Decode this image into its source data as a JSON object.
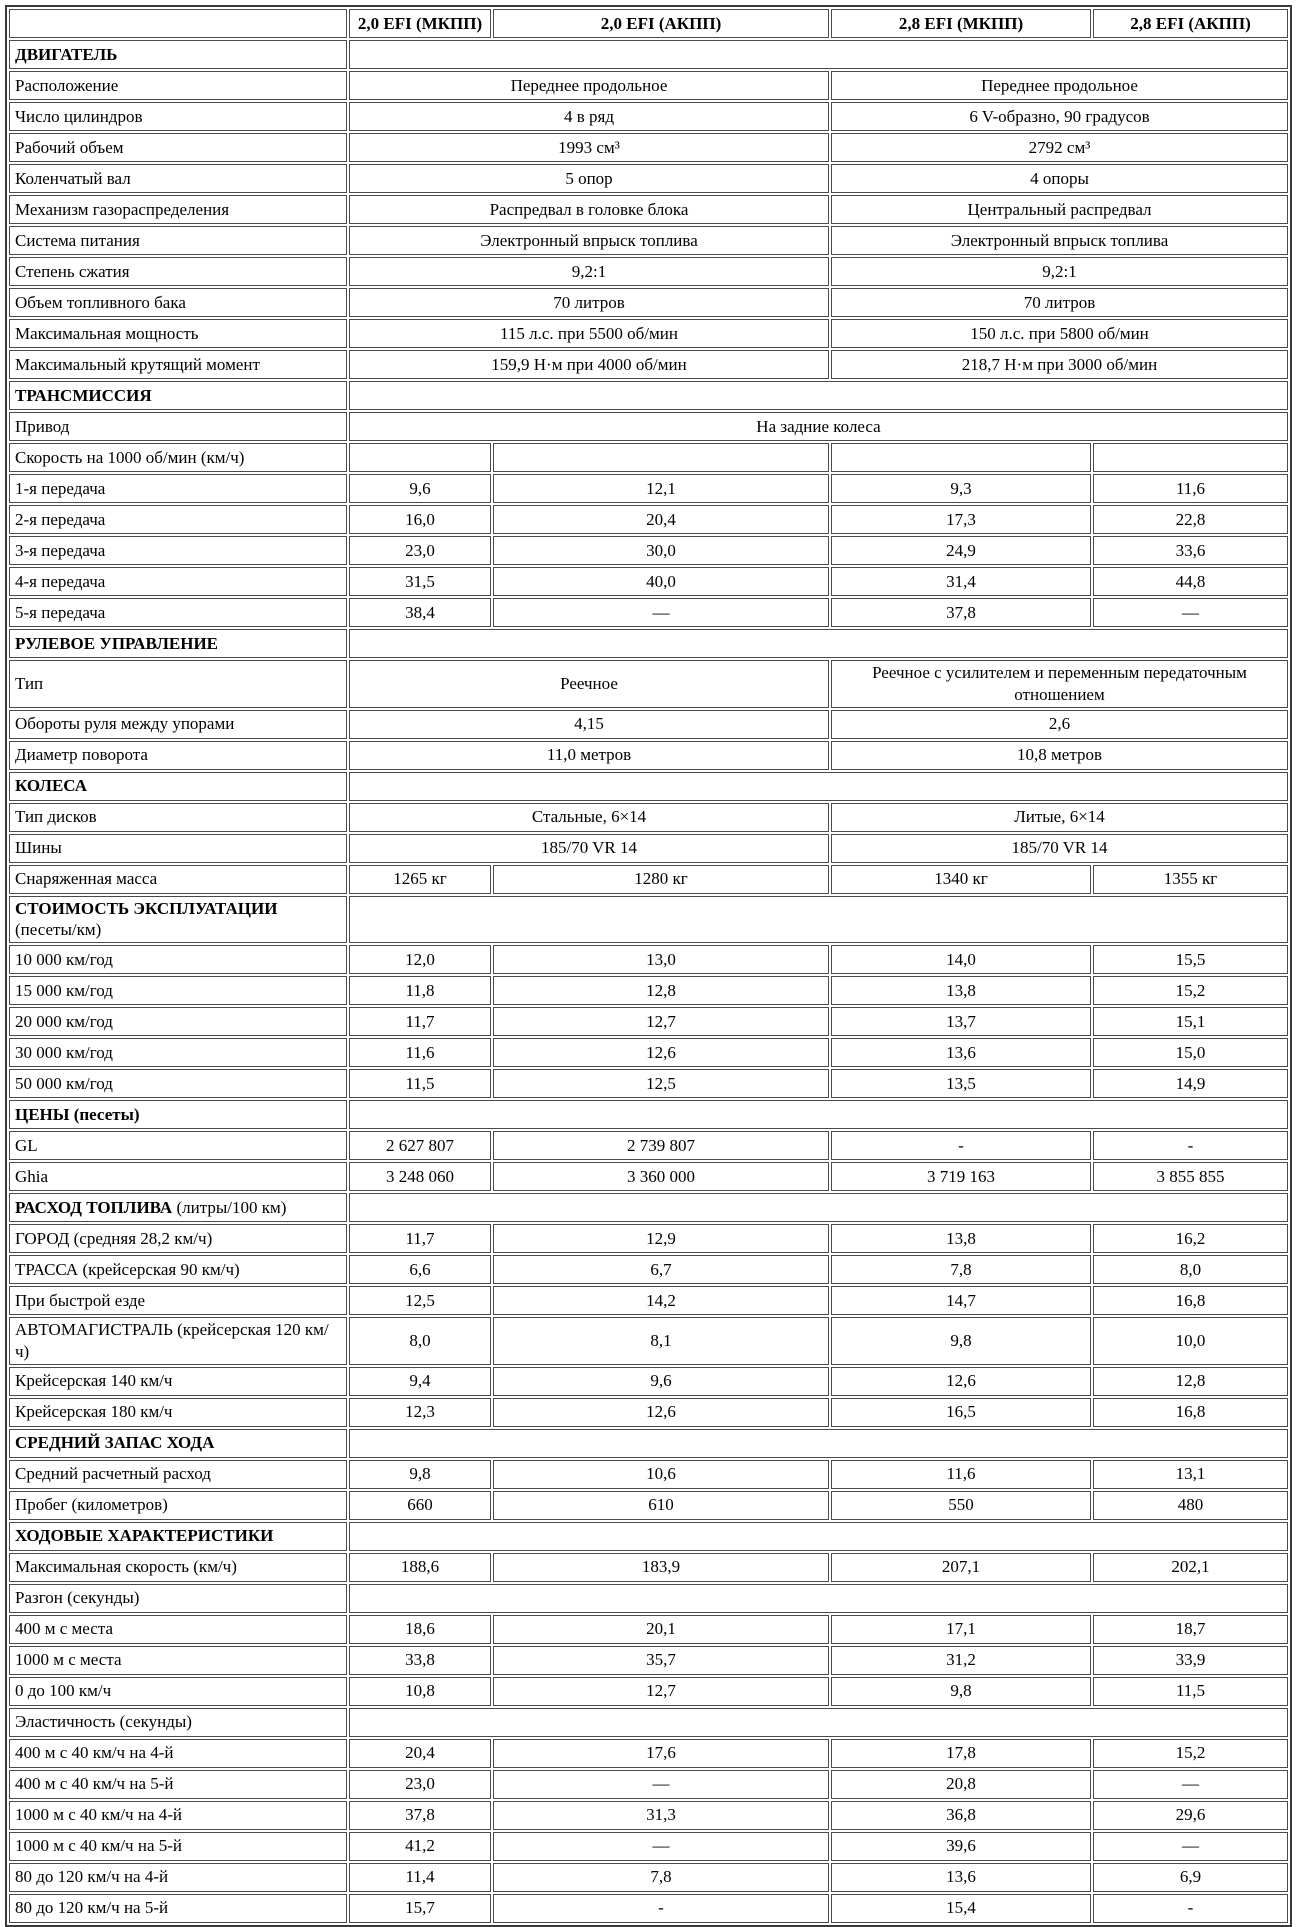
{
  "table": {
    "colors": {
      "background": "#ffffff",
      "text": "#000000",
      "cell_border": "#4a4a4a",
      "outer_border": "#3a3a3a"
    },
    "header": {
      "corner": "",
      "columns": [
        "2,0 EFI (МКПП)",
        "2,0 EFI (АКПП)",
        "2,8 EFI (МКПП)",
        "2,8 EFI (АКПП)"
      ]
    },
    "rows": [
      {
        "type": "section",
        "label": "ДВИГАТЕЛЬ"
      },
      {
        "type": "pair",
        "label": "Расположение",
        "values": [
          "Переднее продольное",
          "Переднее продольное"
        ]
      },
      {
        "type": "pair",
        "label": "Число цилиндров",
        "values": [
          "4 в ряд",
          "6 V-образно, 90 градусов"
        ]
      },
      {
        "type": "pair",
        "label": "Рабочий объем",
        "values": [
          "1993 см³",
          "2792 см³"
        ]
      },
      {
        "type": "pair",
        "label": "Коленчатый вал",
        "values": [
          "5 опор",
          "4 опоры"
        ]
      },
      {
        "type": "pair",
        "label": "Механизм газораспределения",
        "values": [
          "Распредвал в головке блока",
          "Центральный распредвал"
        ]
      },
      {
        "type": "pair",
        "label": "Система питания",
        "values": [
          "Электронный впрыск топлива",
          "Электронный впрыск топлива"
        ]
      },
      {
        "type": "pair",
        "label": "Степень сжатия",
        "values": [
          "9,2:1",
          "9,2:1"
        ]
      },
      {
        "type": "pair",
        "label": "Объем топливного бака",
        "values": [
          "70 литров",
          "70 литров"
        ]
      },
      {
        "type": "pair",
        "label": "Максимальная мощность",
        "values": [
          "115 л.с. при 5500 об/мин",
          "150 л.с. при 5800 об/мин"
        ]
      },
      {
        "type": "pair",
        "label": "Максимальный крутящий момент",
        "values": [
          "159,9 Н·м при 4000 об/мин",
          "218,7 Н·м при 3000 об/мин"
        ]
      },
      {
        "type": "section",
        "label": "ТРАНСМИССИЯ"
      },
      {
        "type": "full",
        "label": "Привод",
        "value": "На задние колеса"
      },
      {
        "type": "empty4",
        "label": "Скорость на 1000 об/мин (км/ч)"
      },
      {
        "type": "four",
        "label": "1-я передача",
        "values": [
          "9,6",
          "12,1",
          "9,3",
          "11,6"
        ]
      },
      {
        "type": "four",
        "label": "2-я передача",
        "values": [
          "16,0",
          "20,4",
          "17,3",
          "22,8"
        ]
      },
      {
        "type": "four",
        "label": "3-я передача",
        "values": [
          "23,0",
          "30,0",
          "24,9",
          "33,6"
        ]
      },
      {
        "type": "four",
        "label": "4-я передача",
        "values": [
          "31,5",
          "40,0",
          "31,4",
          "44,8"
        ]
      },
      {
        "type": "four",
        "label": "5-я передача",
        "values": [
          "38,4",
          "—",
          "37,8",
          "—"
        ]
      },
      {
        "type": "section",
        "label": "РУЛЕВОЕ УПРАВЛЕНИЕ"
      },
      {
        "type": "pair",
        "label": "Тип",
        "values": [
          "Реечное",
          "Реечное с усилителем и переменным передаточным отношением"
        ]
      },
      {
        "type": "pair",
        "label": "Обороты руля между упорами",
        "values": [
          "4,15",
          "2,6"
        ]
      },
      {
        "type": "pair",
        "label": "Диаметр поворота",
        "values": [
          "11,0 метров",
          "10,8 метров"
        ]
      },
      {
        "type": "section",
        "label": "КОЛЕСА"
      },
      {
        "type": "pair",
        "label": "Тип дисков",
        "values": [
          "Стальные, 6×14",
          "Литые, 6×14"
        ]
      },
      {
        "type": "pair",
        "label": "Шины",
        "values": [
          "185/70 VR 14",
          "185/70 VR 14"
        ]
      },
      {
        "type": "four",
        "label": "Снаряженная масса",
        "values": [
          "1265 кг",
          "1280 кг",
          "1340 кг",
          "1355 кг"
        ]
      },
      {
        "type": "section",
        "label": "СТОИМОСТЬ ЭКСПЛУАТАЦИИ",
        "sub": "(песеты/км)",
        "sub_block": true
      },
      {
        "type": "four",
        "label": "10 000 км/год",
        "values": [
          "12,0",
          "13,0",
          "14,0",
          "15,5"
        ]
      },
      {
        "type": "four",
        "label": "15 000 км/год",
        "values": [
          "11,8",
          "12,8",
          "13,8",
          "15,2"
        ]
      },
      {
        "type": "four",
        "label": "20 000 км/год",
        "values": [
          "11,7",
          "12,7",
          "13,7",
          "15,1"
        ]
      },
      {
        "type": "four",
        "label": "30 000 км/год",
        "values": [
          "11,6",
          "12,6",
          "13,6",
          "15,0"
        ]
      },
      {
        "type": "four",
        "label": "50 000 км/год",
        "values": [
          "11,5",
          "12,5",
          "13,5",
          "14,9"
        ]
      },
      {
        "type": "section",
        "label": "ЦЕНЫ (песеты)"
      },
      {
        "type": "four",
        "label": "GL",
        "values": [
          "2 627 807",
          "2 739 807",
          "-",
          "-"
        ]
      },
      {
        "type": "four",
        "label": "Ghia",
        "values": [
          "3 248 060",
          "3 360 000",
          "3 719 163",
          "3 855 855"
        ]
      },
      {
        "type": "section",
        "label": "РАСХОД ТОПЛИВА",
        "sub": "(литры/100 км)"
      },
      {
        "type": "four",
        "label": "ГОРОД (средняя 28,2 км/ч)",
        "values": [
          "11,7",
          "12,9",
          "13,8",
          "16,2"
        ]
      },
      {
        "type": "four",
        "label": "ТРАССА (крейсерская 90 км/ч)",
        "values": [
          "6,6",
          "6,7",
          "7,8",
          "8,0"
        ]
      },
      {
        "type": "four",
        "label": "При быстрой езде",
        "values": [
          "12,5",
          "14,2",
          "14,7",
          "16,8"
        ]
      },
      {
        "type": "four",
        "label": "АВТОМАГИСТРАЛЬ (крейсерская 120 км/ч)",
        "values": [
          "8,0",
          "8,1",
          "9,8",
          "10,0"
        ]
      },
      {
        "type": "four",
        "label": "Крейсерская 140 км/ч",
        "values": [
          "9,4",
          "9,6",
          "12,6",
          "12,8"
        ]
      },
      {
        "type": "four",
        "label": "Крейсерская 180 км/ч",
        "values": [
          "12,3",
          "12,6",
          "16,5",
          "16,8"
        ]
      },
      {
        "type": "section",
        "label": "СРЕДНИЙ ЗАПАС ХОДА"
      },
      {
        "type": "four",
        "label": "Средний расчетный расход",
        "values": [
          "9,8",
          "10,6",
          "11,6",
          "13,1"
        ]
      },
      {
        "type": "four",
        "label": "Пробег (километров)",
        "values": [
          "660",
          "610",
          "550",
          "480"
        ]
      },
      {
        "type": "section",
        "label": "ХОДОВЫЕ ХАРАКТЕРИСТИКИ"
      },
      {
        "type": "four",
        "label": "Максимальная скорость (км/ч)",
        "values": [
          "188,6",
          "183,9",
          "207,1",
          "202,1"
        ]
      },
      {
        "type": "group",
        "label": "Разгон (секунды)"
      },
      {
        "type": "four",
        "label": "400 м с места",
        "values": [
          "18,6",
          "20,1",
          "17,1",
          "18,7"
        ]
      },
      {
        "type": "four",
        "label": "1000 м с места",
        "values": [
          "33,8",
          "35,7",
          "31,2",
          "33,9"
        ]
      },
      {
        "type": "four",
        "label": "0 до 100 км/ч",
        "values": [
          "10,8",
          "12,7",
          "9,8",
          "11,5"
        ]
      },
      {
        "type": "group",
        "label": "Эластичность (секунды)"
      },
      {
        "type": "four",
        "label": "400 м с 40 км/ч на 4-й",
        "values": [
          "20,4",
          "17,6",
          "17,8",
          "15,2"
        ]
      },
      {
        "type": "four",
        "label": "400 м с 40 км/ч на 5-й",
        "values": [
          "23,0",
          "—",
          "20,8",
          "—"
        ]
      },
      {
        "type": "four",
        "label": "1000 м с 40 км/ч на 4-й",
        "values": [
          "37,8",
          "31,3",
          "36,8",
          "29,6"
        ]
      },
      {
        "type": "four",
        "label": "1000 м с 40 км/ч на 5-й",
        "values": [
          "41,2",
          "—",
          "39,6",
          "—"
        ]
      },
      {
        "type": "four",
        "label": "80 до 120 км/ч на 4-й",
        "values": [
          "11,4",
          "7,8",
          "13,6",
          "6,9"
        ]
      },
      {
        "type": "four",
        "label": "80 до 120 км/ч на 5-й",
        "values": [
          "15,7",
          "-",
          "15,4",
          "-"
        ]
      }
    ]
  }
}
